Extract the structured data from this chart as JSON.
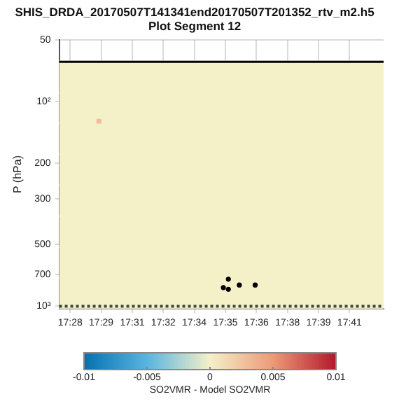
{
  "chart_data": {
    "type": "scatter",
    "title": "SHIS_DRDA_20170507T141341end20170507T201352_rtv_m2.h5",
    "subtitle": "Plot Segment 12",
    "ylabel": "P (hPa)",
    "clabel": "SO2VMR - Model SO2VMR",
    "clim": [
      -0.01,
      0.01
    ],
    "cticks": [
      -0.01,
      -0.005,
      0,
      0.005,
      0.01
    ],
    "series": [
      {
        "type": "scatter",
        "marker": "square",
        "x": [
          17.4669,
          17.4921,
          17.5172,
          17.5424,
          17.5676,
          17.5927,
          17.6179,
          17.643,
          17.6682,
          17.6933,
          17.4669,
          17.4921,
          17.5172,
          17.5424,
          17.5676,
          17.5927,
          17.6179,
          17.643,
          17.6682,
          17.6933,
          17.4669,
          17.4921,
          17.5172,
          17.5424,
          17.5676,
          17.5927,
          17.6179,
          17.643,
          17.6682,
          17.6933,
          17.4669,
          17.4921,
          17.5172,
          17.5424,
          17.5676,
          17.5927,
          17.6179,
          17.643,
          17.6682,
          17.6933,
          17.4669,
          17.4921,
          17.5172,
          17.5424,
          17.5676,
          17.5927,
          17.6179,
          17.643,
          17.6682,
          17.6933,
          17.4669,
          17.4921,
          17.5172,
          17.5424,
          17.5676,
          17.5927,
          17.6179,
          17.643,
          17.6682,
          17.6933,
          17.4669,
          17.4921,
          17.5172,
          17.5424,
          17.5676,
          17.5927,
          17.6179,
          17.643,
          17.6682,
          17.6933,
          17.4669,
          17.4921,
          17.5172,
          17.5424,
          17.5676,
          17.5927,
          17.6179,
          17.643,
          17.6682,
          17.6933
        ],
        "values": [
          76,
          76,
          76,
          76,
          76,
          76,
          76,
          76,
          76,
          76,
          108,
          108,
          108,
          108,
          108,
          108,
          108,
          108,
          108,
          108,
          152,
          152,
          152,
          152,
          152,
          152,
          152,
          152,
          152,
          152,
          216,
          216,
          216,
          216,
          216,
          216,
          216,
          216,
          216,
          216,
          305,
          305,
          305,
          305,
          305,
          305,
          305,
          305,
          305,
          305,
          432,
          432,
          432,
          432,
          432,
          432,
          432,
          432,
          432,
          432,
          610,
          610,
          610,
          610,
          610,
          610,
          610,
          610,
          610,
          610,
          863,
          863,
          863,
          863,
          863,
          863,
          863,
          863,
          863,
          863
        ],
        "cvalues": [
          0,
          0,
          0,
          0,
          0,
          0,
          0,
          0,
          0,
          0,
          0,
          0,
          0,
          0,
          0,
          0,
          0,
          0,
          0,
          0,
          0,
          0,
          0,
          0,
          0,
          0,
          0,
          0,
          0,
          0,
          0,
          0,
          0,
          0,
          0,
          0,
          0,
          0,
          0,
          0,
          0,
          0,
          0,
          0,
          0,
          0,
          0,
          0,
          0,
          0,
          0,
          0,
          0,
          0,
          0,
          0,
          0,
          0,
          0,
          0,
          0,
          0,
          0,
          0,
          0,
          0,
          0,
          0,
          0,
          0,
          0,
          0,
          0,
          0,
          0,
          0,
          0,
          0,
          0,
          0
        ]
      },
      {
        "type": "scatter",
        "marker": "square",
        "x": [
          17.4851
        ],
        "values": [
          125
        ],
        "cvalues": [
          0.003
        ]
      },
      {
        "type": "scatter",
        "marker": "circle",
        "color": "#000000",
        "x": [
          17.5855,
          17.5816,
          17.5855,
          17.594,
          17.6063
        ],
        "values": [
          738,
          811,
          827,
          788,
          788
        ]
      }
    ],
    "xlim": [
      17.4543,
      17.7059
    ],
    "xticks": [
      {
        "value": 17.4628,
        "label": "17:28"
      },
      {
        "value": 17.4869,
        "label": "17:29"
      },
      {
        "value": 17.511,
        "label": "17:31"
      },
      {
        "value": 17.5351,
        "label": "17:32"
      },
      {
        "value": 17.5591,
        "label": "17:34"
      },
      {
        "value": 17.5832,
        "label": "17:35"
      },
      {
        "value": 17.6073,
        "label": "17:36"
      },
      {
        "value": 17.6314,
        "label": "17:38"
      },
      {
        "value": 17.6554,
        "label": "17:39"
      },
      {
        "value": 17.6795,
        "label": "17:41"
      }
    ],
    "ylim": [
      1030,
      50
    ],
    "log": "y",
    "yticks": [
      50,
      {
        "value": 100,
        "label": "10²"
      },
      200,
      300,
      500,
      700,
      {
        "value": 1000,
        "label": "10³"
      }
    ],
    "ref_lines": [
      {
        "axis": "y",
        "value": 64,
        "color": "#000000",
        "line_style": "solid"
      },
      {
        "axis": "y",
        "value": 1000,
        "color": "#444444",
        "line_style": "dotted"
      }
    ],
    "grid": true,
    "legend": false
  }
}
